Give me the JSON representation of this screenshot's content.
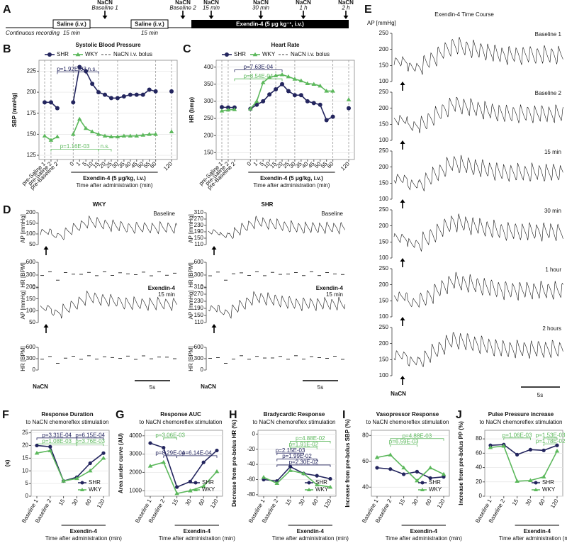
{
  "timeline": {
    "panel": "A",
    "note": "Continuous recording",
    "saline": [
      {
        "label": "Saline (i.v.)",
        "duration": "15 min"
      },
      {
        "label": "Saline (i.v.)",
        "duration": "15 min"
      }
    ],
    "treatment": "Exendin-4 (5 μg kg⁻¹, i.v.)",
    "boluses": [
      {
        "label": "NaCN",
        "time": "Baseline 1"
      },
      {
        "label": "NaCN",
        "time": "Baseline 2"
      },
      {
        "label": "NaCN",
        "time": "15 min"
      },
      {
        "label": "NaCN",
        "time": "30 min"
      },
      {
        "label": "NaCN",
        "time": "1 h"
      },
      {
        "label": "NaCN",
        "time": "2 h"
      }
    ]
  },
  "chart_data": [
    {
      "type": "line",
      "panel": "B",
      "title": "Systolic Blood Pressure",
      "ylabel": "SBP (mmHg)",
      "xgroup": "Exendin-4 (5 μg/kg, i.v.)",
      "xlabel": "Time after administration (min)",
      "bolus_legend": "NaCN i.v. bolus",
      "legend": "top",
      "grid": true,
      "categories": [
        "pre-Saline 1",
        "pre-Saline 2",
        "pre-Baseline 2",
        "0",
        "1",
        "5",
        "10",
        "15",
        "20",
        "25",
        "30",
        "35",
        "40",
        "45",
        "50",
        "55",
        "60",
        "120"
      ],
      "series": [
        {
          "name": "SHR",
          "color": "#23255e",
          "values": [
            188,
            188,
            181,
            188,
            230,
            225,
            210,
            200,
            197,
            193,
            193,
            195,
            197,
            197,
            197,
            203,
            201,
            201
          ]
        },
        {
          "name": "WKY",
          "color": "#5cb85c",
          "values": [
            148,
            143,
            147,
            150,
            168,
            157,
            153,
            150,
            148,
            147,
            147,
            148,
            148,
            148,
            149,
            150,
            150,
            153
          ]
        }
      ],
      "ylim": [
        120,
        238
      ],
      "yticks": [
        125,
        150,
        175,
        200,
        225
      ],
      "annotations": [
        {
          "text": "p=1.92E-03",
          "color": "#23255e"
        },
        {
          "text": "n.s.",
          "color": "#23255e"
        },
        {
          "text": "p=1.16E-03",
          "color": "#5cb85c"
        },
        {
          "text": "n.s.",
          "color": "#5cb85c"
        }
      ]
    },
    {
      "type": "line",
      "panel": "C",
      "title": "Heart Rate",
      "ylabel": "HR (bmp)",
      "xgroup": "Exendin-4 (5 μg/kg, i.v.)",
      "xlabel": "Time after administration (min)",
      "bolus_legend": "NaCN i.v. bolus",
      "legend": "top",
      "grid": true,
      "categories": [
        "pre-Saline 1",
        "pre-Saline 2",
        "pre-Baseline 2",
        "0",
        "1",
        "5",
        "10",
        "15",
        "20",
        "25",
        "30",
        "35",
        "40",
        "45",
        "50",
        "55",
        "60",
        "120"
      ],
      "series": [
        {
          "name": "SHR",
          "color": "#23255e",
          "values": [
            283,
            282,
            282,
            278,
            290,
            300,
            320,
            335,
            350,
            330,
            318,
            318,
            300,
            295,
            290,
            245,
            255,
            280
          ]
        },
        {
          "name": "WKY",
          "color": "#5cb85c",
          "values": [
            272,
            275,
            276,
            278,
            300,
            355,
            370,
            375,
            378,
            372,
            365,
            360,
            352,
            350,
            345,
            330,
            330,
            305
          ]
        }
      ],
      "ylim": [
        130,
        420
      ],
      "yticks": [
        150,
        200,
        250,
        300,
        350,
        400
      ],
      "annotations": [
        {
          "text": "p=7.63E-04",
          "color": "#23255e"
        },
        {
          "text": "p=8.54E-04",
          "color": "#5cb85c"
        }
      ]
    },
    {
      "type": "line",
      "panel": "F",
      "title": "Response Duration",
      "subtitle": "to NaCN chemoreflex stimulation",
      "ylabel": "(s)",
      "xgroup": "Exendin-4",
      "xlabel": "Time after administration (min)",
      "legend": "lower right",
      "grid": true,
      "categories": [
        "Baseline 1",
        "Baseline 2",
        "15",
        "30",
        "60",
        "120"
      ],
      "series": [
        {
          "name": "SHR",
          "color": "#23255e",
          "values": [
            20,
            19.5,
            6,
            7.5,
            13,
            17
          ]
        },
        {
          "name": "WKY",
          "color": "#5cb85c",
          "values": [
            17,
            18,
            6,
            7,
            10,
            15
          ]
        }
      ],
      "ylim": [
        0,
        26
      ],
      "yticks": [
        0,
        5,
        10,
        15,
        20,
        25
      ],
      "annotations": [
        {
          "text": "p=3.31E-04",
          "color": "#23255e"
        },
        {
          "text": "p=6.15E-04",
          "color": "#23255e"
        },
        {
          "text": "p=1.08E-03",
          "color": "#5cb85c"
        },
        {
          "text": "p=3.76E-03",
          "color": "#5cb85c"
        }
      ]
    },
    {
      "type": "line",
      "panel": "G",
      "title": "Response AUC",
      "subtitle": "to NaCN chemoreflex stimulation",
      "ylabel": "Area under curve (AU)",
      "xgroup": "Exendin-4",
      "xlabel": "Time after administration (min)",
      "legend": "lower right",
      "grid": true,
      "categories": [
        "Baseline 1",
        "Baseline 2",
        "15",
        "30",
        "60",
        "120"
      ],
      "series": [
        {
          "name": "SHR",
          "color": "#23255e",
          "values": [
            3600,
            3350,
            1200,
            1500,
            2550,
            3200
          ]
        },
        {
          "name": "WKY",
          "color": "#5cb85c",
          "values": [
            2350,
            2550,
            850,
            1000,
            1250,
            2050
          ]
        }
      ],
      "ylim": [
        700,
        4300
      ],
      "yticks": [
        1000,
        2000,
        3000,
        4000
      ],
      "annotations": [
        {
          "text": "p=3.06E-03",
          "color": "#5cb85c"
        },
        {
          "text": "p=8.29E-04",
          "color": "#23255e"
        },
        {
          "text": "p=6.14E-04",
          "color": "#23255e"
        }
      ]
    },
    {
      "type": "line",
      "panel": "H",
      "title": "Bradycardic Response",
      "subtitle": "to NaCN chemoreflex stimulation",
      "ylabel": "Decrease from pre-bolus HR (%)",
      "xgroup": "Exendin-4",
      "xlabel": "Time after administration (min)",
      "legend": "lower right",
      "grid": true,
      "categories": [
        "Baseline 1",
        "Baseline 2",
        "15",
        "30",
        "60",
        "120"
      ],
      "series": [
        {
          "name": "SHR",
          "color": "#23255e",
          "values": [
            -60,
            -62,
            -43,
            -52,
            -55,
            -59
          ]
        },
        {
          "name": "WKY",
          "color": "#5cb85c",
          "values": [
            -57,
            -65,
            -48,
            -52,
            -67,
            -70
          ]
        }
      ],
      "ylim": [
        -82,
        5
      ],
      "yticks": [
        0,
        -20,
        -40,
        -60,
        -80
      ],
      "annotations": [
        {
          "text": "p=2.15E-03",
          "color": "#23255e"
        },
        {
          "text": "p=1.99E-02",
          "color": "#23255e"
        },
        {
          "text": "p=2.30E-02",
          "color": "#23255e"
        },
        {
          "text": "p=1.91E-02",
          "color": "#5cb85c"
        },
        {
          "text": "p=4.88E-02",
          "color": "#5cb85c"
        }
      ]
    },
    {
      "type": "line",
      "panel": "I",
      "title": "Vasopressor Response",
      "subtitle": "to NaCN chemoreflex stimulation",
      "ylabel": "Increase from pre-bolus SBP (%)",
      "xgroup": "Exendin-4",
      "xlabel": "Time after administration (min)",
      "legend": "lower right",
      "grid": true,
      "categories": [
        "Baseline 1",
        "Baseline 2",
        "15",
        "30",
        "60",
        "120"
      ],
      "series": [
        {
          "name": "SHR",
          "color": "#23255e",
          "values": [
            55,
            54,
            50,
            52,
            47,
            48
          ]
        },
        {
          "name": "WKY",
          "color": "#5cb85c",
          "values": [
            63,
            65,
            55,
            45,
            55,
            50
          ]
        }
      ],
      "ylim": [
        33,
        84
      ],
      "yticks": [
        40,
        60,
        80
      ],
      "annotations": [
        {
          "text": "p=4.88E-03",
          "color": "#5cb85c"
        },
        {
          "text": "p=6.59E-03",
          "color": "#5cb85c"
        }
      ]
    },
    {
      "type": "line",
      "panel": "J",
      "title": "Pulse Pressure increase",
      "subtitle": "to NaCN chemoreflex stimulation",
      "ylabel": "Increase from pre-bolus PP (%)",
      "xgroup": "Exendin-4",
      "xlabel": "Time after administration (min)",
      "legend": "lower right",
      "grid": true,
      "categories": [
        "Baseline 1",
        "Baseline 2",
        "15",
        "30",
        "60",
        "120"
      ],
      "series": [
        {
          "name": "SHR",
          "color": "#23255e",
          "values": [
            71,
            72,
            58,
            65,
            64,
            71
          ]
        },
        {
          "name": "WKY",
          "color": "#5cb85c",
          "values": [
            68,
            70,
            21,
            22,
            27,
            63
          ]
        }
      ],
      "ylim": [
        0,
        92
      ],
      "yticks": [
        0,
        20,
        40,
        60,
        80
      ],
      "annotations": [
        {
          "text": "p=1.06E-03",
          "color": "#5cb85c"
        },
        {
          "text": "p=1.53E-03",
          "color": "#5cb85c"
        },
        {
          "text": "p=1.78E-02",
          "color": "#5cb85c"
        }
      ]
    }
  ],
  "traces": {
    "panel": "D",
    "ap_label": "AP [mmHg]",
    "hr_label": "HR [BPM]",
    "stimulus": "NaCN",
    "scale": "5s",
    "columns": [
      {
        "title": "WKY",
        "rows": [
          {
            "label": "Baseline",
            "ap_ticks": [
              50,
              100,
              150,
              200
            ],
            "hr_ticks": [
              0,
              300,
              600
            ]
          },
          {
            "label": "Exendin-4",
            "sublabel": "15 min",
            "ap_ticks": [
              50,
              100,
              150,
              200
            ],
            "hr_ticks": [
              0,
              300,
              600
            ]
          }
        ]
      },
      {
        "title": "SHR",
        "rows": [
          {
            "label": "Baseline",
            "ap_ticks": [
              110,
              150,
              190,
              230,
              270,
              310
            ],
            "hr_ticks": [
              0,
              300,
              600
            ]
          },
          {
            "label": "Exendin-4",
            "sublabel": "15 min",
            "ap_ticks": [
              110,
              150,
              190,
              230,
              270,
              310
            ],
            "hr_ticks": [
              0,
              300,
              600
            ]
          }
        ]
      }
    ]
  },
  "time_course": {
    "panel": "E",
    "title": "Exendin-4 Time Course",
    "ap_label": "AP [mmHg]",
    "yticks": [
      100,
      150,
      200,
      250
    ],
    "rows": [
      "Baseline 1",
      "Baseline 2",
      "15 min",
      "30 min",
      "1 hour",
      "2 hours"
    ],
    "stimulus": "NaCN",
    "scale": "5s"
  }
}
